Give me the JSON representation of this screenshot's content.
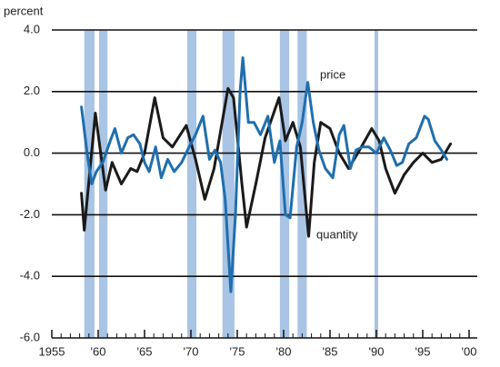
{
  "chart_data": {
    "type": "line",
    "y_label": "percent",
    "xlim": [
      1955,
      2000
    ],
    "xticks": [
      {
        "value": 1955,
        "label": "1955"
      },
      {
        "value": 1960,
        "label": "'60"
      },
      {
        "value": 1965,
        "label": "'65"
      },
      {
        "value": 1970,
        "label": "'70"
      },
      {
        "value": 1975,
        "label": "'75"
      },
      {
        "value": 1980,
        "label": "'80"
      },
      {
        "value": 1985,
        "label": "'85"
      },
      {
        "value": 1990,
        "label": "'90"
      },
      {
        "value": 1995,
        "label": "'95"
      },
      {
        "value": 2000,
        "label": "'00"
      }
    ],
    "ylim": [
      -6,
      4
    ],
    "yticks": [
      {
        "value": -6,
        "label": "-6.0"
      },
      {
        "value": -4,
        "label": "-4.0"
      },
      {
        "value": -2,
        "label": "-2.0"
      },
      {
        "value": 0,
        "label": "0.0"
      },
      {
        "value": 2,
        "label": "2.0"
      },
      {
        "value": 4,
        "label": "4.0"
      }
    ],
    "grid": true,
    "shaded_color": "#a9c4e4",
    "shaded": [
      [
        1958.5,
        1959.6
      ],
      [
        1960.1,
        1961.0
      ],
      [
        1969.6,
        1970.6
      ],
      [
        1973.4,
        1974.7
      ],
      [
        1979.6,
        1980.6
      ],
      [
        1981.5,
        1982.5
      ],
      [
        1989.8,
        1990.2
      ]
    ],
    "series": [
      {
        "name": "quantity",
        "color": "#1a1a1a",
        "x": [
          1958.2,
          1958.5,
          1959.7,
          1960.8,
          1961.5,
          1962.5,
          1963.5,
          1964.2,
          1965.0,
          1966.1,
          1967.0,
          1968.0,
          1969.5,
          1970.5,
          1971.5,
          1972.5,
          1974.0,
          1974.6,
          1975.5,
          1976.0,
          1977.0,
          1978.0,
          1979.5,
          1980.2,
          1981.0,
          1981.8,
          1982.7,
          1983.3,
          1984.0,
          1985.0,
          1986.0,
          1987.0,
          1988.0,
          1989.5,
          1990.3,
          1991.0,
          1992.0,
          1993.0,
          1994.0,
          1995.0,
          1996.0,
          1997.0,
          1998.0
        ],
        "values": [
          -1.3,
          -2.5,
          1.3,
          -1.2,
          -0.3,
          -1.0,
          -0.5,
          -0.6,
          0.0,
          1.8,
          0.5,
          0.2,
          0.9,
          -0.2,
          -1.5,
          -0.5,
          2.1,
          1.8,
          -1.0,
          -2.4,
          -1.0,
          0.5,
          1.8,
          0.4,
          1.0,
          0.2,
          -2.7,
          -0.3,
          1.0,
          0.8,
          0.0,
          -0.5,
          0.0,
          0.8,
          0.4,
          -0.5,
          -1.3,
          -0.7,
          -0.3,
          0.0,
          -0.3,
          -0.2,
          0.3
        ]
      },
      {
        "name": "price",
        "color": "#1f6fae",
        "x": [
          1958.2,
          1958.8,
          1959.3,
          1959.8,
          1960.5,
          1961.3,
          1961.8,
          1962.5,
          1963.2,
          1963.8,
          1964.5,
          1965.0,
          1965.5,
          1966.2,
          1966.8,
          1967.5,
          1968.2,
          1969.0,
          1969.8,
          1970.5,
          1971.3,
          1972.0,
          1972.6,
          1973.2,
          1973.7,
          1974.3,
          1974.8,
          1975.3,
          1975.6,
          1976.2,
          1976.8,
          1977.5,
          1978.3,
          1979.0,
          1979.6,
          1980.2,
          1980.7,
          1981.4,
          1982.0,
          1982.6,
          1983.2,
          1983.8,
          1984.5,
          1985.3,
          1986.0,
          1986.5,
          1987.2,
          1987.8,
          1988.5,
          1989.2,
          1990.0,
          1990.8,
          1991.5,
          1992.2,
          1992.8,
          1993.5,
          1994.3,
          1995.2,
          1995.6,
          1996.3,
          1997.0,
          1997.6
        ],
        "values": [
          1.5,
          0.0,
          -1.0,
          -0.6,
          -0.3,
          0.4,
          0.8,
          0.0,
          0.5,
          0.6,
          0.3,
          -0.3,
          -0.6,
          0.2,
          -0.8,
          -0.2,
          -0.6,
          -0.3,
          0.2,
          0.6,
          1.2,
          -0.2,
          0.1,
          -0.3,
          -1.5,
          -4.5,
          -2.0,
          2.0,
          3.1,
          1.0,
          1.0,
          0.6,
          1.2,
          -0.3,
          0.4,
          -2.0,
          -2.1,
          0.2,
          1.0,
          2.3,
          1.0,
          0.1,
          -0.5,
          -0.8,
          0.6,
          0.9,
          -0.5,
          0.1,
          0.2,
          0.2,
          0.0,
          0.5,
          0.1,
          -0.4,
          -0.3,
          0.3,
          0.5,
          1.2,
          1.1,
          0.4,
          0.1,
          -0.2
        ]
      }
    ]
  }
}
